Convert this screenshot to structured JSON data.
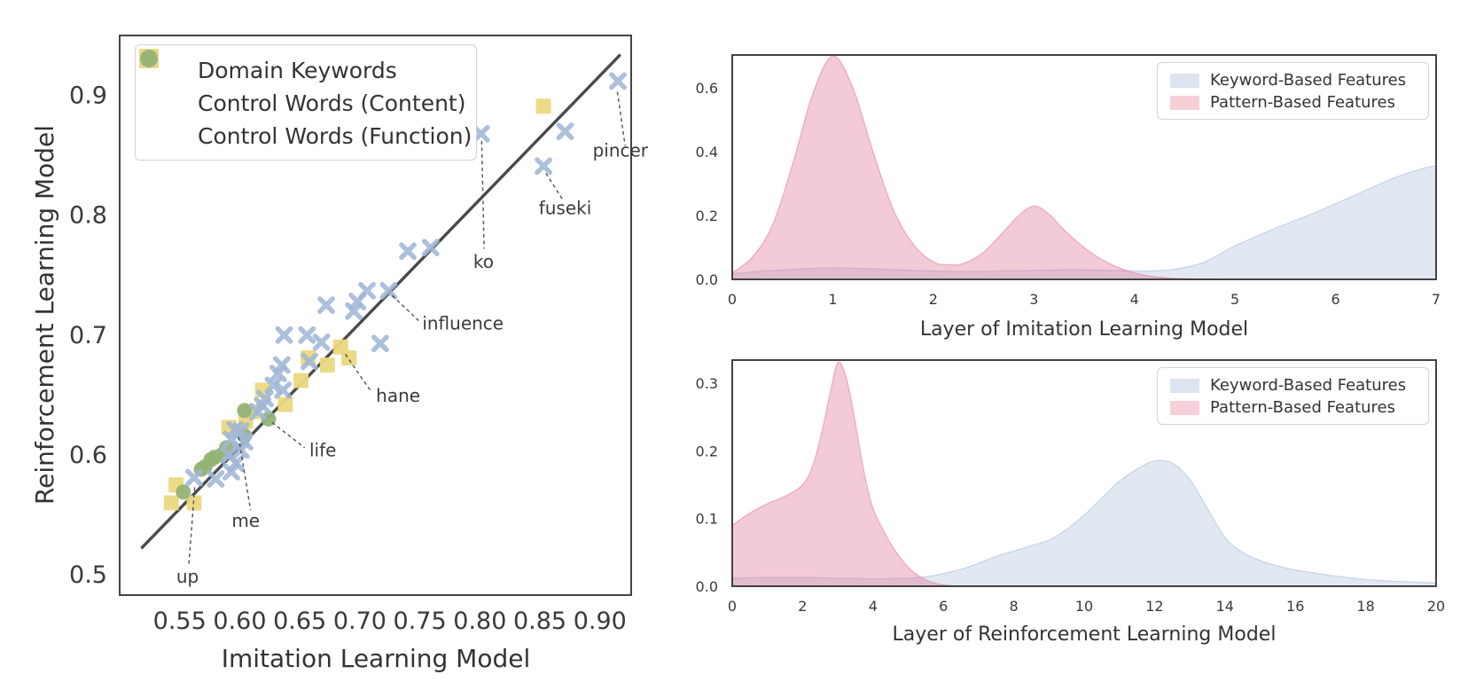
{
  "colors": {
    "keyword_x": "#a0b6d6",
    "content_square": "#ebd87e",
    "function_circle": "#93b375",
    "identity_line": "#4a4a4a",
    "kde_keyword_base": "#aabdd9",
    "kde_pattern_base": "#e07a9a",
    "legend_patch_keyword": "#dde4f0",
    "legend_patch_pattern": "#f6cfd9",
    "annotation_line": "#4a4a4a",
    "axis_frame": "#2f2f2f",
    "tick_text": "#3a3a3a"
  },
  "chart_data": [
    {
      "id": "scatter-il-vs-rl",
      "type": "scatter",
      "xlabel": "Imitation Learning Model",
      "ylabel": "Reinforcement Learning Model",
      "xlim": [
        0.5,
        0.926
      ],
      "ylim": [
        0.483,
        0.95
      ],
      "xticks": [
        0.55,
        0.6,
        0.65,
        0.7,
        0.75,
        0.8,
        0.85,
        0.9
      ],
      "yticks": [
        0.5,
        0.6,
        0.7,
        0.8,
        0.9
      ],
      "grid": false,
      "legend_position": "upper left",
      "identity_line": [
        [
          0.518,
          0.522
        ],
        [
          0.917,
          0.934
        ]
      ],
      "series": [
        {
          "name": "Domain Keywords",
          "marker": "x",
          "points": [
            [
              0.915,
              0.912
            ],
            [
              0.871,
              0.87
            ],
            [
              0.853,
              0.841
            ],
            [
              0.801,
              0.868
            ],
            [
              0.759,
              0.773
            ],
            [
              0.74,
              0.77
            ],
            [
              0.724,
              0.737
            ],
            [
              0.706,
              0.737
            ],
            [
              0.698,
              0.728
            ],
            [
              0.695,
              0.72
            ],
            [
              0.672,
              0.725
            ],
            [
              0.717,
              0.693
            ],
            [
              0.637,
              0.7
            ],
            [
              0.656,
              0.7
            ],
            [
              0.668,
              0.694
            ],
            [
              0.658,
              0.678
            ],
            [
              0.635,
              0.675
            ],
            [
              0.632,
              0.668
            ],
            [
              0.636,
              0.654
            ],
            [
              0.628,
              0.658
            ],
            [
              0.621,
              0.647
            ],
            [
              0.619,
              0.641
            ],
            [
              0.615,
              0.636
            ],
            [
              0.601,
              0.62
            ],
            [
              0.596,
              0.621
            ],
            [
              0.604,
              0.611
            ],
            [
              0.593,
              0.613
            ],
            [
              0.601,
              0.604
            ],
            [
              0.591,
              0.6
            ],
            [
              0.597,
              0.593
            ],
            [
              0.593,
              0.586
            ],
            [
              0.58,
              0.58
            ],
            [
              0.562,
              0.581
            ]
          ]
        },
        {
          "name": "Control Words (Content)",
          "marker": "square",
          "points": [
            [
              0.853,
              0.891
            ],
            [
              0.684,
              0.69
            ],
            [
              0.691,
              0.681
            ],
            [
              0.673,
              0.675
            ],
            [
              0.657,
              0.681
            ],
            [
              0.651,
              0.662
            ],
            [
              0.638,
              0.642
            ],
            [
              0.619,
              0.654
            ],
            [
              0.611,
              0.636
            ],
            [
              0.605,
              0.628
            ],
            [
              0.591,
              0.623
            ],
            [
              0.547,
              0.575
            ],
            [
              0.543,
              0.56
            ],
            [
              0.562,
              0.56
            ]
          ]
        },
        {
          "name": "Control Words (Function)",
          "marker": "circle",
          "points": [
            [
              0.624,
              0.63
            ],
            [
              0.604,
              0.637
            ],
            [
              0.604,
              0.616
            ],
            [
              0.589,
              0.606
            ],
            [
              0.585,
              0.6
            ],
            [
              0.579,
              0.598
            ],
            [
              0.576,
              0.596
            ],
            [
              0.571,
              0.59
            ],
            [
              0.568,
              0.588
            ],
            [
              0.553,
              0.569
            ]
          ]
        }
      ],
      "annotations": [
        {
          "word": "pincer",
          "point": [
            0.915,
            0.912
          ],
          "line": [
            [
              0.9145,
              0.903
            ],
            [
              0.921,
              0.858
            ]
          ],
          "text": [
            0.917,
            0.849
          ],
          "anchor": "middle"
        },
        {
          "word": "fuseki",
          "point": [
            0.853,
            0.841
          ],
          "line": [
            [
              0.855,
              0.835
            ],
            [
              0.869,
              0.813
            ]
          ],
          "text": [
            0.871,
            0.801
          ],
          "anchor": "middle"
        },
        {
          "word": "ko",
          "point": [
            0.801,
            0.868
          ],
          "line": [
            [
              0.8015,
              0.862
            ],
            [
              0.8035,
              0.772
            ]
          ],
          "text": [
            0.803,
            0.756
          ],
          "anchor": "middle"
        },
        {
          "word": "influence",
          "point": [
            0.724,
            0.737
          ],
          "line": [
            [
              0.727,
              0.733
            ],
            [
              0.749,
              0.712
            ]
          ],
          "text": [
            0.752,
            0.7045
          ],
          "anchor": "start"
        },
        {
          "word": "hane",
          "point": [
            0.684,
            0.69
          ],
          "line": [
            [
              0.688,
              0.684
            ],
            [
              0.71,
              0.652
            ]
          ],
          "text": [
            0.7135,
            0.6445
          ],
          "anchor": "start"
        },
        {
          "word": "life",
          "point": [
            0.624,
            0.63
          ],
          "line": [
            [
              0.627,
              0.627
            ],
            [
              0.654,
              0.606
            ]
          ],
          "text": [
            0.658,
            0.599
          ],
          "anchor": "start"
        },
        {
          "word": "me",
          "point": [
            0.601,
            0.62
          ],
          "line": [
            [
              0.599,
              0.615
            ],
            [
              0.609,
              0.554
            ]
          ],
          "text": [
            0.605,
            0.54
          ],
          "anchor": "middle"
        },
        {
          "word": "up",
          "point": [
            0.562,
            0.581
          ],
          "line": [
            [
              0.5625,
              0.573
            ],
            [
              0.5575,
              0.507
            ]
          ],
          "text": [
            0.5565,
            0.4935
          ],
          "anchor": "middle"
        }
      ]
    },
    {
      "id": "kde-imitation-layers",
      "type": "area",
      "xlabel": "Layer of Imitation Learning Model",
      "xlim": [
        0,
        7
      ],
      "ylim": [
        0,
        0.703
      ],
      "xticks": [
        0,
        1,
        2,
        3,
        4,
        5,
        6,
        7
      ],
      "yticks": [
        0.0,
        0.2,
        0.4,
        0.6
      ],
      "grid": false,
      "legend_position": "upper right",
      "series": [
        {
          "name": "Keyword-Based Features",
          "x": [
            0,
            0.35,
            0.7,
            1.0,
            1.4,
            1.8,
            2.2,
            2.6,
            3.0,
            3.4,
            3.8,
            4.1,
            4.4,
            4.7,
            5.0,
            5.4,
            5.8,
            6.2,
            6.6,
            6.9,
            7.0
          ],
          "y": [
            0.018,
            0.027,
            0.033,
            0.036,
            0.033,
            0.028,
            0.025,
            0.026,
            0.028,
            0.03,
            0.028,
            0.026,
            0.032,
            0.055,
            0.105,
            0.16,
            0.21,
            0.265,
            0.32,
            0.35,
            0.355
          ]
        },
        {
          "name": "Pattern-Based Features",
          "x": [
            0,
            0.2,
            0.4,
            0.6,
            0.8,
            1.0,
            1.2,
            1.4,
            1.6,
            1.8,
            2.0,
            2.15,
            2.3,
            2.5,
            2.7,
            2.85,
            3.0,
            3.15,
            3.3,
            3.5,
            3.7,
            3.9,
            4.1,
            4.35,
            4.6,
            5.0,
            6.0,
            7.0
          ],
          "y": [
            0.02,
            0.07,
            0.17,
            0.36,
            0.58,
            0.7,
            0.6,
            0.4,
            0.22,
            0.11,
            0.055,
            0.046,
            0.05,
            0.085,
            0.15,
            0.2,
            0.23,
            0.205,
            0.155,
            0.1,
            0.058,
            0.03,
            0.013,
            0.004,
            0.001,
            0,
            0,
            0
          ]
        }
      ]
    },
    {
      "id": "kde-reinforcement-layers",
      "type": "area",
      "xlabel": "Layer of Reinforcement Learning Model",
      "xlim": [
        0,
        20
      ],
      "ylim": [
        0,
        0.334
      ],
      "xticks": [
        0,
        2,
        4,
        6,
        8,
        10,
        12,
        14,
        16,
        18,
        20
      ],
      "yticks": [
        0.0,
        0.1,
        0.2,
        0.3
      ],
      "grid": false,
      "legend_position": "upper right",
      "series": [
        {
          "name": "Keyword-Based Features",
          "x": [
            0,
            1,
            2,
            3,
            4,
            5,
            5.5,
            6,
            6.5,
            7,
            7.5,
            8,
            8.5,
            9,
            9.5,
            10,
            10.5,
            11,
            11.5,
            12,
            12.5,
            13,
            13.5,
            14,
            14.5,
            15,
            15.5,
            16,
            17,
            18,
            19,
            20
          ],
          "y": [
            0.012,
            0.013,
            0.013,
            0.012,
            0.011,
            0.012,
            0.014,
            0.019,
            0.025,
            0.034,
            0.044,
            0.052,
            0.06,
            0.068,
            0.084,
            0.105,
            0.13,
            0.155,
            0.173,
            0.185,
            0.182,
            0.158,
            0.115,
            0.072,
            0.05,
            0.038,
            0.03,
            0.024,
            0.016,
            0.01,
            0.007,
            0.005
          ]
        },
        {
          "name": "Pattern-Based Features",
          "x": [
            0,
            0.5,
            1.0,
            1.5,
            2.0,
            2.3,
            2.6,
            2.8,
            3.0,
            3.2,
            3.4,
            3.6,
            3.8,
            4.0,
            4.3,
            4.6,
            5.0,
            5.4,
            5.8,
            6.2,
            6.6,
            7.0,
            13.0,
            20.0
          ],
          "y": [
            0.09,
            0.108,
            0.122,
            0.133,
            0.15,
            0.18,
            0.24,
            0.29,
            0.33,
            0.315,
            0.27,
            0.21,
            0.155,
            0.115,
            0.082,
            0.055,
            0.028,
            0.012,
            0.004,
            0.001,
            0,
            0,
            0,
            0
          ]
        }
      ]
    }
  ]
}
